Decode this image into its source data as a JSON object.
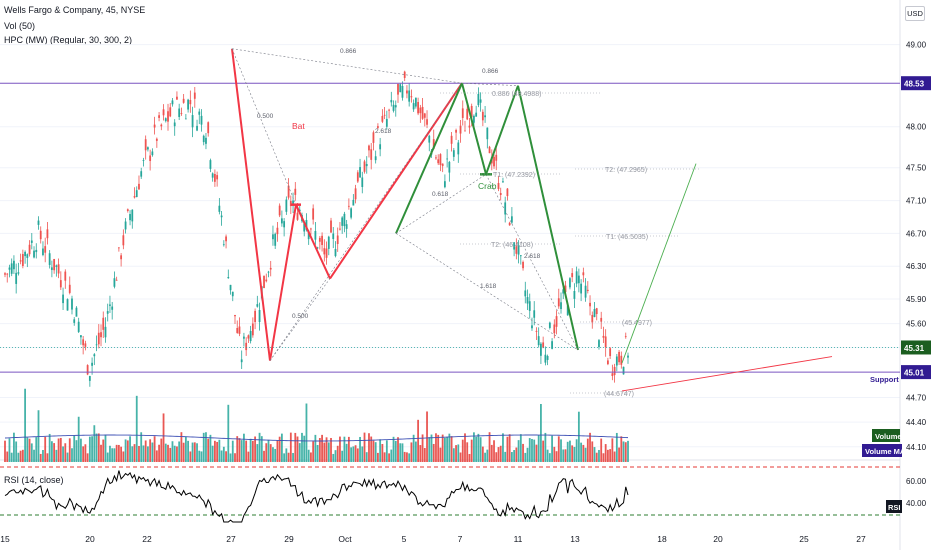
{
  "header": {
    "symbol_line": "Wells Fargo & Company, 45, NYSE",
    "vol_line": "Vol (50)",
    "hpc_line": "HPC (MW) (Regular, 30, 300, 2)",
    "currency": "USD",
    "rsi_line": "RSI (14, close)"
  },
  "badges": {
    "volume": "Volume",
    "volume_ma": "Volume MA",
    "rsi": "RSI"
  },
  "chart_data": {
    "type": "candlestick",
    "symbol": "Wells Fargo & Company",
    "interval": "45",
    "exchange": "NYSE",
    "price_axis": {
      "ticks": [
        "49.00",
        "48.53",
        "48.00",
        "47.50",
        "47.10",
        "46.70",
        "46.30",
        "45.90",
        "45.60",
        "45.31",
        "45.01",
        "44.70",
        "44.40",
        "44.10"
      ],
      "range": [
        44.0,
        49.3
      ]
    },
    "rsi_axis": {
      "ticks": [
        "60.00",
        "40.00"
      ]
    },
    "time_axis": {
      "ticks": [
        "15",
        "20",
        "22",
        "27",
        "29",
        "Oct",
        "5",
        "7",
        "11",
        "13",
        "18",
        "20",
        "25",
        "27"
      ]
    },
    "price_path": [
      [
        15,
        46.2
      ],
      [
        16,
        46.4
      ],
      [
        17,
        46.7
      ],
      [
        18,
        46.3
      ],
      [
        19,
        45.9
      ],
      [
        20,
        45.05
      ],
      [
        21,
        45.6
      ],
      [
        22,
        46.6
      ],
      [
        23,
        47.4
      ],
      [
        24,
        47.9
      ],
      [
        25,
        48.2
      ],
      [
        26,
        48.3
      ],
      [
        27,
        48.0
      ],
      [
        28,
        46.7
      ],
      [
        29,
        45.2
      ],
      [
        30,
        45.8
      ],
      [
        31,
        46.6
      ],
      [
        32,
        47.1
      ],
      [
        33,
        46.9
      ],
      [
        34,
        46.4
      ],
      [
        35,
        46.8
      ],
      [
        36,
        47.3
      ],
      [
        37,
        47.8
      ],
      [
        38,
        48.2
      ],
      [
        39,
        48.52
      ],
      [
        40,
        48.0
      ],
      [
        41,
        47.4
      ],
      [
        42,
        47.9
      ],
      [
        43,
        48.35
      ],
      [
        44,
        47.6
      ],
      [
        45,
        46.9
      ],
      [
        46,
        45.9
      ],
      [
        47,
        45.25
      ],
      [
        48,
        45.8
      ],
      [
        49,
        46.2
      ],
      [
        50,
        45.7
      ],
      [
        51,
        45.1
      ],
      [
        52,
        45.3
      ]
    ],
    "pivots": [
      {
        "label": "",
        "price": 48.95
      },
      {
        "label": "",
        "price": 45.15
      },
      {
        "label": "",
        "price": 47.05
      },
      {
        "label": "",
        "price": 46.15
      },
      {
        "label": "",
        "price": 48.53
      },
      {
        "label": "",
        "price": 47.42
      },
      {
        "label": "",
        "price": 48.5
      },
      {
        "label": "",
        "price": 45.28
      }
    ],
    "patterns": [
      {
        "name": "Bat",
        "color": "#f23645"
      },
      {
        "name": "Crab",
        "color": "#2f8f3a"
      }
    ],
    "ratios": [
      "0.866",
      "0.500",
      "2.618",
      "0.500",
      "0.866",
      "0.618",
      "2.618",
      "1.618"
    ],
    "targets": [
      {
        "label": "0.886 (48.4988)",
        "price": 48.4988
      },
      {
        "label": "T2: (47.2965)",
        "price": 47.2965
      },
      {
        "label": "T1: (47.2392)",
        "price": 47.2392
      },
      {
        "label": "T1: (46.5035)",
        "price": 46.5035
      },
      {
        "label": "T2: (46.4108)",
        "price": 46.4108
      },
      {
        "label": "(45.4977)",
        "price": 45.4977
      },
      {
        "label": "(44.6747)",
        "price": 44.6747
      }
    ],
    "horizontal_lines": [
      {
        "price": 48.53,
        "label": "48.53",
        "color": "#7e57c2"
      },
      {
        "price": 45.01,
        "label": "45.01",
        "color": "#7e57c2",
        "annotation": "Support"
      },
      {
        "price": 45.31,
        "label": "45.31",
        "color": "#26a69a",
        "style": "dotted"
      }
    ],
    "projection_price": 47.55,
    "support_trend_price": 45.2,
    "rsi_levels": [
      {
        "value": 70,
        "color": "#e53935"
      },
      {
        "value": 30,
        "color": "#2e7d32"
      }
    ],
    "volume": {
      "ma_label": "Volume MA"
    }
  }
}
